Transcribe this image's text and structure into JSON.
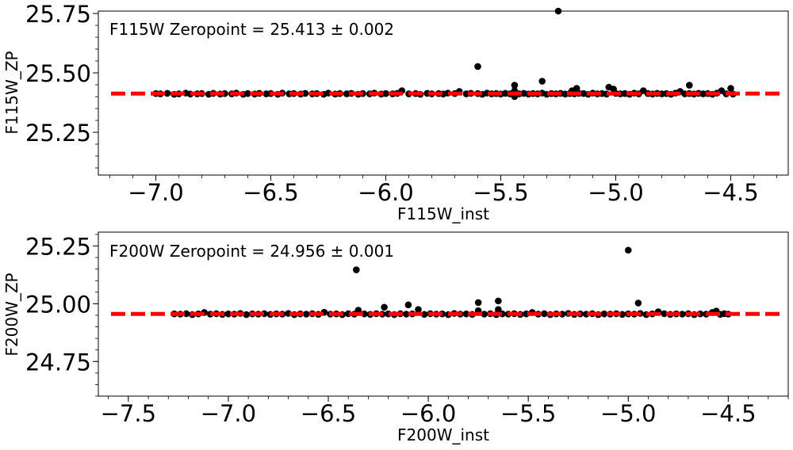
{
  "colors": {
    "points": "#000000",
    "fit_line": "#ff0000",
    "axes": "#000000",
    "background": "#ffffff"
  },
  "chart_data": [
    {
      "type": "scatter",
      "xlabel": "F115W_inst",
      "ylabel": "F115W_ZP",
      "annotation": "F115W Zeropoint = 25.413 ± 0.002",
      "xlim": [
        -7.25,
        -4.25
      ],
      "ylim": [
        25.07,
        25.76
      ],
      "xticks": [
        -7.0,
        -6.5,
        -6.0,
        -5.5,
        -5.0,
        -4.5
      ],
      "xtick_labels": [
        "−7.0",
        "−6.5",
        "−6.0",
        "−5.5",
        "−5.0",
        "−4.5"
      ],
      "yticks": [
        25.25,
        25.5,
        25.75
      ],
      "ytick_labels": [
        "25.25",
        "25.50",
        "25.75"
      ],
      "zeropoint": 25.413,
      "fit_line_x": [
        -7.25,
        -4.25
      ],
      "data_x_range": [
        -7.0,
        -4.49
      ],
      "grid": false,
      "points": [
        [
          -7.0,
          25.413
        ],
        [
          -6.98,
          25.412
        ],
        [
          -6.95,
          25.414
        ],
        [
          -6.92,
          25.41
        ],
        [
          -6.9,
          25.412
        ],
        [
          -6.87,
          25.415
        ],
        [
          -6.85,
          25.411
        ],
        [
          -6.82,
          25.412
        ],
        [
          -6.8,
          25.413
        ],
        [
          -6.77,
          25.41
        ],
        [
          -6.75,
          25.414
        ],
        [
          -6.72,
          25.411
        ],
        [
          -6.7,
          25.413
        ],
        [
          -6.67,
          25.412
        ],
        [
          -6.65,
          25.415
        ],
        [
          -6.62,
          25.41
        ],
        [
          -6.6,
          25.413
        ],
        [
          -6.57,
          25.411
        ],
        [
          -6.55,
          25.414
        ],
        [
          -6.52,
          25.412
        ],
        [
          -6.5,
          25.413
        ],
        [
          -6.47,
          25.41
        ],
        [
          -6.45,
          25.415
        ],
        [
          -6.42,
          25.412
        ],
        [
          -6.4,
          25.413
        ],
        [
          -6.37,
          25.411
        ],
        [
          -6.35,
          25.414
        ],
        [
          -6.32,
          25.412
        ],
        [
          -6.3,
          25.413
        ],
        [
          -6.27,
          25.41
        ],
        [
          -6.25,
          25.415
        ],
        [
          -6.22,
          25.411
        ],
        [
          -6.2,
          25.413
        ],
        [
          -6.17,
          25.412
        ],
        [
          -6.15,
          25.414
        ],
        [
          -6.12,
          25.41
        ],
        [
          -6.1,
          25.413
        ],
        [
          -6.07,
          25.412
        ],
        [
          -6.05,
          25.415
        ],
        [
          -6.02,
          25.411
        ],
        [
          -6.0,
          25.413
        ],
        [
          -5.97,
          25.412
        ],
        [
          -5.95,
          25.414
        ],
        [
          -5.93,
          25.425
        ],
        [
          -5.9,
          25.412
        ],
        [
          -5.87,
          25.413
        ],
        [
          -5.85,
          25.41
        ],
        [
          -5.82,
          25.414
        ],
        [
          -5.8,
          25.412
        ],
        [
          -5.77,
          25.413
        ],
        [
          -5.75,
          25.411
        ],
        [
          -5.73,
          25.415
        ],
        [
          -5.7,
          25.413
        ],
        [
          -5.68,
          25.422
        ],
        [
          -5.65,
          25.412
        ],
        [
          -5.63,
          25.414
        ],
        [
          -5.6,
          25.413
        ],
        [
          -5.58,
          25.41
        ],
        [
          -5.56,
          25.415
        ],
        [
          -5.54,
          25.412
        ],
        [
          -5.52,
          25.413
        ],
        [
          -5.5,
          25.411
        ],
        [
          -5.48,
          25.414
        ],
        [
          -5.46,
          25.412
        ],
        [
          -5.44,
          25.413
        ],
        [
          -5.44,
          25.425
        ],
        [
          -5.44,
          25.448
        ],
        [
          -5.44,
          25.4
        ],
        [
          -5.42,
          25.412
        ],
        [
          -5.4,
          25.414
        ],
        [
          -5.38,
          25.411
        ],
        [
          -5.36,
          25.413
        ],
        [
          -5.34,
          25.412
        ],
        [
          -5.32,
          25.415
        ],
        [
          -5.3,
          25.41
        ],
        [
          -5.28,
          25.413
        ],
        [
          -5.26,
          25.412
        ],
        [
          -5.24,
          25.414
        ],
        [
          -5.22,
          25.411
        ],
        [
          -5.2,
          25.413
        ],
        [
          -5.19,
          25.425
        ],
        [
          -5.18,
          25.412
        ],
        [
          -5.17,
          25.435
        ],
        [
          -5.16,
          25.414
        ],
        [
          -5.14,
          25.413
        ],
        [
          -5.12,
          25.41
        ],
        [
          -5.1,
          25.415
        ],
        [
          -5.08,
          25.412
        ],
        [
          -5.06,
          25.413
        ],
        [
          -5.04,
          25.411
        ],
        [
          -5.03,
          25.44
        ],
        [
          -5.01,
          25.432
        ],
        [
          -5.0,
          25.414
        ],
        [
          -4.98,
          25.412
        ],
        [
          -4.96,
          25.413
        ],
        [
          -4.94,
          25.41
        ],
        [
          -4.92,
          25.415
        ],
        [
          -4.9,
          25.412
        ],
        [
          -4.88,
          25.425
        ],
        [
          -4.86,
          25.413
        ],
        [
          -4.84,
          25.411
        ],
        [
          -4.82,
          25.414
        ],
        [
          -4.8,
          25.412
        ],
        [
          -4.78,
          25.413
        ],
        [
          -4.76,
          25.41
        ],
        [
          -4.74,
          25.415
        ],
        [
          -4.72,
          25.422
        ],
        [
          -4.7,
          25.412
        ],
        [
          -4.68,
          25.413
        ],
        [
          -4.66,
          25.411
        ],
        [
          -4.64,
          25.414
        ],
        [
          -4.62,
          25.412
        ],
        [
          -4.6,
          25.413
        ],
        [
          -4.58,
          25.41
        ],
        [
          -4.56,
          25.415
        ],
        [
          -4.54,
          25.425
        ],
        [
          -4.52,
          25.412
        ],
        [
          -4.5,
          25.435
        ],
        [
          -4.49,
          25.411
        ],
        [
          -5.6,
          25.527
        ],
        [
          -5.32,
          25.465
        ],
        [
          -5.25,
          25.76
        ],
        [
          -4.68,
          25.448
        ]
      ]
    },
    {
      "type": "scatter",
      "xlabel": "F200W_inst",
      "ylabel": "F200W_ZP",
      "annotation": "F200W Zeropoint = 24.956 ± 0.001",
      "xlim": [
        -7.65,
        -4.2
      ],
      "ylim": [
        24.6,
        25.31
      ],
      "xticks": [
        -7.5,
        -7.0,
        -6.5,
        -6.0,
        -5.5,
        -5.0,
        -4.5
      ],
      "xtick_labels": [
        "−7.5",
        "−7.0",
        "−6.5",
        "−6.0",
        "−5.5",
        "−5.0",
        "−4.5"
      ],
      "yticks": [
        24.75,
        25.0,
        25.25
      ],
      "ytick_labels": [
        "24.75",
        "25.00",
        "25.25"
      ],
      "zeropoint": 24.956,
      "fit_line_x": [
        -7.65,
        -4.2
      ],
      "data_x_range": [
        -7.27,
        -4.5
      ],
      "grid": false,
      "points": [
        [
          -7.27,
          24.956
        ],
        [
          -7.24,
          24.955
        ],
        [
          -7.21,
          24.957
        ],
        [
          -7.18,
          24.953
        ],
        [
          -7.15,
          24.956
        ],
        [
          -7.12,
          24.962
        ],
        [
          -7.09,
          24.955
        ],
        [
          -7.06,
          24.957
        ],
        [
          -7.03,
          24.954
        ],
        [
          -7.0,
          24.956
        ],
        [
          -6.97,
          24.955
        ],
        [
          -6.94,
          24.958
        ],
        [
          -6.91,
          24.953
        ],
        [
          -6.88,
          24.956
        ],
        [
          -6.85,
          24.955
        ],
        [
          -6.82,
          24.957
        ],
        [
          -6.79,
          24.954
        ],
        [
          -6.76,
          24.956
        ],
        [
          -6.73,
          24.955
        ],
        [
          -6.7,
          24.958
        ],
        [
          -6.67,
          24.953
        ],
        [
          -6.64,
          24.956
        ],
        [
          -6.61,
          24.955
        ],
        [
          -6.58,
          24.957
        ],
        [
          -6.55,
          24.954
        ],
        [
          -6.52,
          24.963
        ],
        [
          -6.49,
          24.955
        ],
        [
          -6.46,
          24.956
        ],
        [
          -6.43,
          24.953
        ],
        [
          -6.4,
          24.957
        ],
        [
          -6.37,
          24.955
        ],
        [
          -6.35,
          24.972
        ],
        [
          -6.32,
          24.956
        ],
        [
          -6.29,
          24.954
        ],
        [
          -6.26,
          24.957
        ],
        [
          -6.23,
          24.955
        ],
        [
          -6.2,
          24.956
        ],
        [
          -6.17,
          24.953
        ],
        [
          -6.14,
          24.957
        ],
        [
          -6.11,
          24.955
        ],
        [
          -6.08,
          24.956
        ],
        [
          -6.05,
          24.975
        ],
        [
          -6.02,
          24.954
        ],
        [
          -5.99,
          24.957
        ],
        [
          -5.96,
          24.955
        ],
        [
          -5.93,
          24.956
        ],
        [
          -5.9,
          24.953
        ],
        [
          -5.87,
          24.958
        ],
        [
          -5.84,
          24.955
        ],
        [
          -5.81,
          24.956
        ],
        [
          -5.78,
          24.954
        ],
        [
          -5.75,
          24.97
        ],
        [
          -5.72,
          24.955
        ],
        [
          -5.69,
          24.957
        ],
        [
          -5.66,
          24.953
        ],
        [
          -5.65,
          24.975
        ],
        [
          -5.63,
          24.956
        ],
        [
          -5.6,
          24.955
        ],
        [
          -5.57,
          24.957
        ],
        [
          -5.54,
          24.954
        ],
        [
          -5.51,
          24.956
        ],
        [
          -5.48,
          24.962
        ],
        [
          -5.45,
          24.955
        ],
        [
          -5.42,
          24.957
        ],
        [
          -5.39,
          24.953
        ],
        [
          -5.36,
          24.956
        ],
        [
          -5.33,
          24.955
        ],
        [
          -5.3,
          24.958
        ],
        [
          -5.27,
          24.954
        ],
        [
          -5.24,
          24.956
        ],
        [
          -5.21,
          24.955
        ],
        [
          -5.18,
          24.957
        ],
        [
          -5.15,
          24.953
        ],
        [
          -5.12,
          24.956
        ],
        [
          -5.09,
          24.955
        ],
        [
          -5.06,
          24.957
        ],
        [
          -5.03,
          24.954
        ],
        [
          -5.0,
          24.956
        ],
        [
          -4.97,
          24.955
        ],
        [
          -4.94,
          24.958
        ],
        [
          -4.91,
          24.953
        ],
        [
          -4.88,
          24.956
        ],
        [
          -4.85,
          24.965
        ],
        [
          -4.82,
          24.957
        ],
        [
          -4.79,
          24.954
        ],
        [
          -4.76,
          24.956
        ],
        [
          -4.73,
          24.955
        ],
        [
          -4.7,
          24.957
        ],
        [
          -4.67,
          24.953
        ],
        [
          -4.64,
          24.956
        ],
        [
          -4.61,
          24.955
        ],
        [
          -4.58,
          24.962
        ],
        [
          -4.56,
          24.968
        ],
        [
          -4.54,
          24.954
        ],
        [
          -4.52,
          24.957
        ],
        [
          -4.5,
          24.955
        ],
        [
          -6.36,
          25.147
        ],
        [
          -6.22,
          24.985
        ],
        [
          -6.1,
          24.995
        ],
        [
          -5.75,
          25.005
        ],
        [
          -5.65,
          25.012
        ],
        [
          -5.0,
          25.232
        ],
        [
          -4.95,
          25.003
        ]
      ]
    }
  ]
}
